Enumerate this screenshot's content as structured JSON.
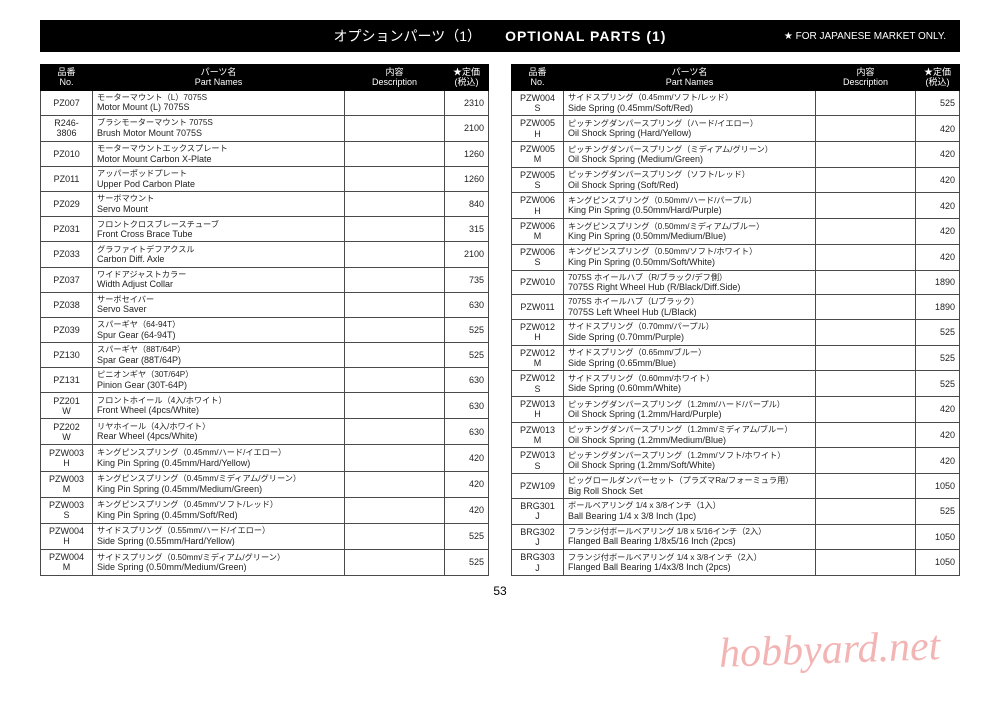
{
  "header": {
    "title_jp": "オプションパーツ（1）",
    "title_en": "OPTIONAL PARTS (1)",
    "note": "★ FOR JAPANESE MARKET ONLY."
  },
  "columns": {
    "no_jp": "品番",
    "no_en": "No.",
    "name_jp": "パーツ名",
    "name_en": "Part Names",
    "desc_jp": "内容",
    "desc_en": "Description",
    "price_jp": "★定価",
    "price_en": "(税込)"
  },
  "left_rows": [
    {
      "no": "PZ007",
      "jp": "モーターマウント（L）7075S",
      "en": "Motor Mount (L) 7075S",
      "desc": "",
      "price": "2310"
    },
    {
      "no": "R246-3806",
      "jp": "ブラシモーターマウント 7075S",
      "en": "Brush Motor Mount 7075S",
      "desc": "",
      "price": "2100"
    },
    {
      "no": "PZ010",
      "jp": "モーターマウントエックスプレート",
      "en": "Motor Mount Carbon X-Plate",
      "desc": "",
      "price": "1260"
    },
    {
      "no": "PZ011",
      "jp": "アッパーポッドプレート",
      "en": "Upper Pod Carbon Plate",
      "desc": "",
      "price": "1260"
    },
    {
      "no": "PZ029",
      "jp": "サーボマウント",
      "en": "Servo Mount",
      "desc": "",
      "price": "840"
    },
    {
      "no": "PZ031",
      "jp": "フロントクロスブレースチューブ",
      "en": "Front Cross Brace Tube",
      "desc": "",
      "price": "315"
    },
    {
      "no": "PZ033",
      "jp": "グラファイトデフアクスル",
      "en": "Carbon Diff. Axle",
      "desc": "",
      "price": "2100"
    },
    {
      "no": "PZ037",
      "jp": "ワイドアジャストカラー",
      "en": "Width Adjust Collar",
      "desc": "",
      "price": "735"
    },
    {
      "no": "PZ038",
      "jp": "サーボセイバー",
      "en": "Servo Saver",
      "desc": "",
      "price": "630"
    },
    {
      "no": "PZ039",
      "jp": "スパーギヤ（64-94T）",
      "en": "Spur Gear (64-94T)",
      "desc": "",
      "price": "525"
    },
    {
      "no": "PZ130",
      "jp": "スパーギヤ（88T/64P）",
      "en": "Spar Gear (88T/64P)",
      "desc": "",
      "price": "525"
    },
    {
      "no": "PZ131",
      "jp": "ピニオンギヤ（30T/64P）",
      "en": "Pinion Gear (30T-64P)",
      "desc": "",
      "price": "630"
    },
    {
      "no": "PZ201\nW",
      "jp": "フロントホイール（4入/ホワイト）",
      "en": "Front Wheel (4pcs/White)",
      "desc": "",
      "price": "630"
    },
    {
      "no": "PZ202\nW",
      "jp": "リヤホイール（4入/ホワイト）",
      "en": "Rear Wheel (4pcs/White)",
      "desc": "",
      "price": "630"
    },
    {
      "no": "PZW003\nH",
      "jp": "キングピンスプリング（0.45mm/ハード/イエロー）",
      "en": "King Pin Spring (0.45mm/Hard/Yellow)",
      "desc": "",
      "price": "420"
    },
    {
      "no": "PZW003\nM",
      "jp": "キングピンスプリング（0.45mm/ミディアム/グリーン）",
      "en": "King Pin Spring (0.45mm/Medium/Green)",
      "desc": "",
      "price": "420"
    },
    {
      "no": "PZW003\nS",
      "jp": "キングピンスプリング（0.45mm/ソフト/レッド）",
      "en": "King Pin Spring (0.45mm/Soft/Red)",
      "desc": "",
      "price": "420"
    },
    {
      "no": "PZW004\nH",
      "jp": "サイドスプリング（0.55mm/ハード/イエロー）",
      "en": "Side Spring (0.55mm/Hard/Yellow)",
      "desc": "",
      "price": "525"
    },
    {
      "no": "PZW004\nM",
      "jp": "サイドスプリング（0.50mm/ミディアム/グリーン）",
      "en": "Side Spring (0.50mm/Medium/Green)",
      "desc": "",
      "price": "525"
    }
  ],
  "right_rows": [
    {
      "no": "PZW004\nS",
      "jp": "サイドスプリング（0.45mm/ソフト/レッド）",
      "en": "Side Spring (0.45mm/Soft/Red)",
      "desc": "",
      "price": "525"
    },
    {
      "no": "PZW005\nH",
      "jp": "ピッチングダンパースプリング（ハード/イエロー）",
      "en": "Oil Shock Spring (Hard/Yellow)",
      "desc": "",
      "price": "420"
    },
    {
      "no": "PZW005\nM",
      "jp": "ピッチングダンパースプリング（ミディアム/グリーン）",
      "en": "Oil Shock Spring (Medium/Green)",
      "desc": "",
      "price": "420"
    },
    {
      "no": "PZW005\nS",
      "jp": "ピッチングダンパースプリング（ソフト/レッド）",
      "en": "Oil Shock Spring (Soft/Red)",
      "desc": "",
      "price": "420"
    },
    {
      "no": "PZW006\nH",
      "jp": "キングピンスプリング（0.50mm/ハード/パープル）",
      "en": "King Pin Spring (0.50mm/Hard/Purple)",
      "desc": "",
      "price": "420"
    },
    {
      "no": "PZW006\nM",
      "jp": "キングピンスプリング（0.50mm/ミディアム/ブルー）",
      "en": "King Pin Spring (0.50mm/Medium/Blue)",
      "desc": "",
      "price": "420"
    },
    {
      "no": "PZW006\nS",
      "jp": "キングピンスプリング（0.50mm/ソフト/ホワイト）",
      "en": "King Pin Spring (0.50mm/Soft/White)",
      "desc": "",
      "price": "420"
    },
    {
      "no": "PZW010",
      "jp": "7075S ホイールハブ（R/ブラック/デフ側）",
      "en": "7075S Right Wheel Hub (R/Black/Diff.Side)",
      "desc": "",
      "price": "1890"
    },
    {
      "no": "PZW011",
      "jp": "7075S ホイールハブ（L/ブラック）",
      "en": "7075S Left Wheel Hub (L/Black)",
      "desc": "",
      "price": "1890"
    },
    {
      "no": "PZW012\nH",
      "jp": "サイドスプリング（0.70mm/パープル）",
      "en": "Side Spring (0.70mm/Purple)",
      "desc": "",
      "price": "525"
    },
    {
      "no": "PZW012\nM",
      "jp": "サイドスプリング（0.65mm/ブルー）",
      "en": "Side Spring (0.65mm/Blue)",
      "desc": "",
      "price": "525"
    },
    {
      "no": "PZW012\nS",
      "jp": "サイドスプリング（0.60mm/ホワイト）",
      "en": "Side Spring (0.60mm/White)",
      "desc": "",
      "price": "525"
    },
    {
      "no": "PZW013\nH",
      "jp": "ピッチングダンパースプリング（1.2mm/ハード/パープル）",
      "en": "Oil Shock Spring (1.2mm/Hard/Purple)",
      "desc": "",
      "price": "420"
    },
    {
      "no": "PZW013\nM",
      "jp": "ピッチングダンパースプリング（1.2mm/ミディアム/ブルー）",
      "en": "Oil Shock Spring (1.2mm/Medium/Blue)",
      "desc": "",
      "price": "420"
    },
    {
      "no": "PZW013\nS",
      "jp": "ピッチングダンパースプリング（1.2mm/ソフト/ホワイト）",
      "en": "Oil Shock Spring (1.2mm/Soft/White)",
      "desc": "",
      "price": "420"
    },
    {
      "no": "PZW109",
      "jp": "ビッグロールダンパーセット（プラズマRa/フォーミュラ用）",
      "en": "Big Roll Shock Set",
      "desc": "",
      "price": "1050"
    },
    {
      "no": "BRG301\nJ",
      "jp": "ボールベアリング 1/4 x 3/8インチ（1入）",
      "en": "Ball Bearing 1/4 x 3/8 Inch (1pc)",
      "desc": "",
      "price": "525"
    },
    {
      "no": "BRG302\nJ",
      "jp": "フランジ付ボールベアリング 1/8 x 5/16インチ（2入）",
      "en": "Flanged Ball Bearing 1/8x5/16 Inch (2pcs)",
      "desc": "",
      "price": "1050"
    },
    {
      "no": "BRG303\nJ",
      "jp": "フランジ付ボールベアリング 1/4 x 3/8インチ（2入）",
      "en": "Flanged Ball Bearing 1/4x3/8 Inch (2pcs)",
      "desc": "",
      "price": "1050"
    }
  ],
  "page_number": "53",
  "watermark": "hobbyard.net"
}
